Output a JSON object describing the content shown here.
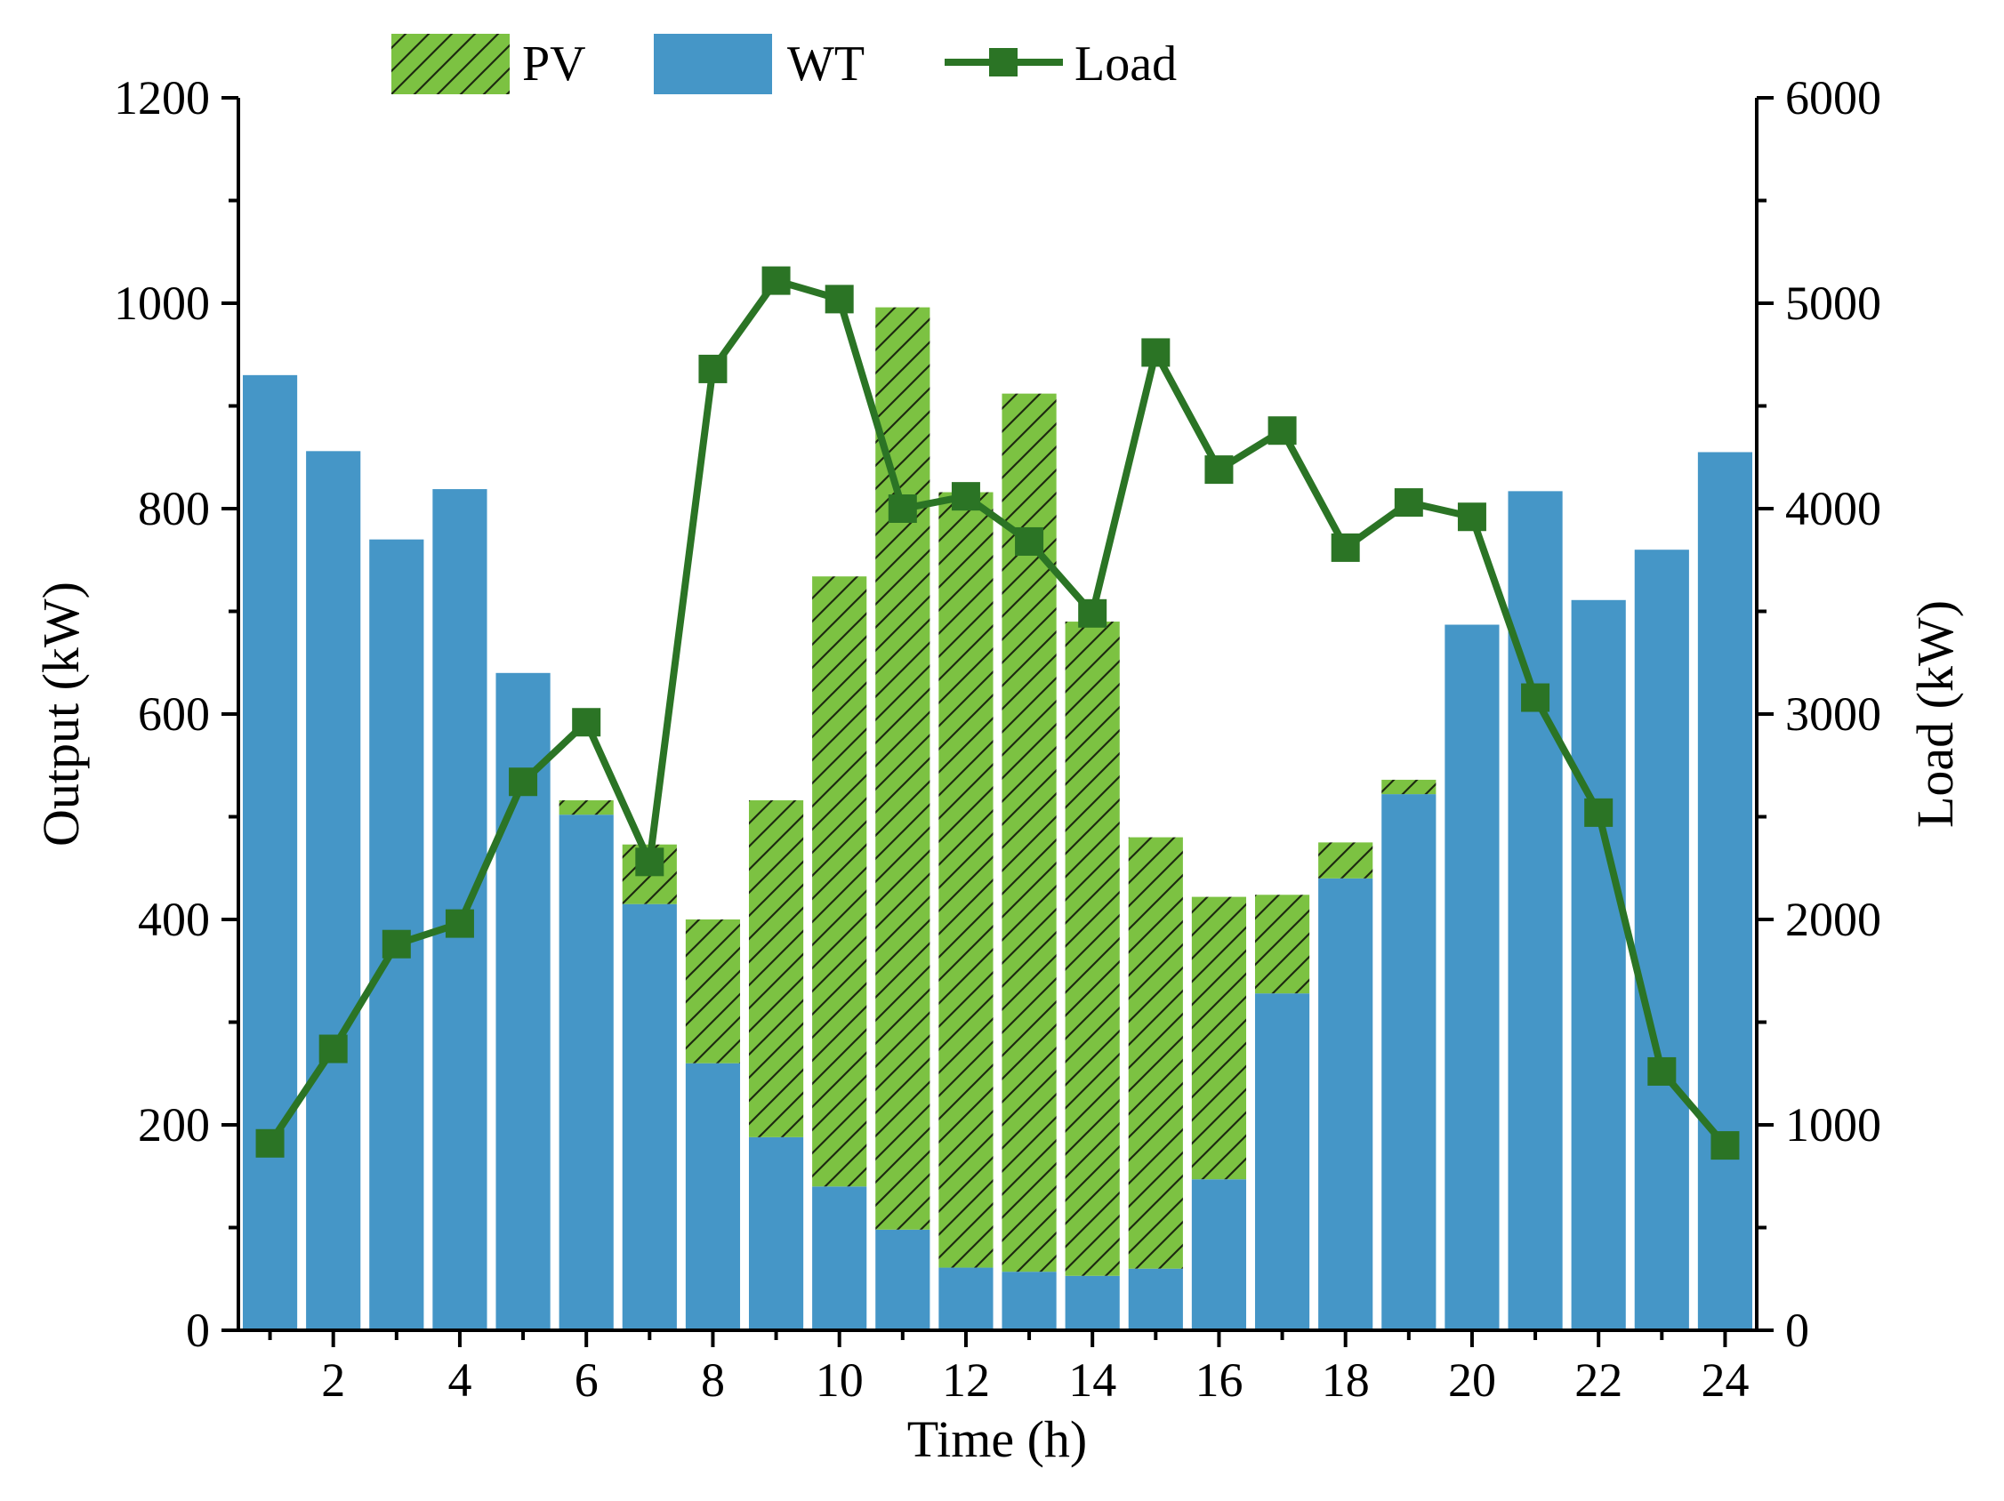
{
  "chart_data": {
    "type": "bar",
    "stacked": true,
    "xlabel": "Time (h)",
    "ylabel_left": "Output (kW)",
    "ylabel_right": "Load (kW)",
    "ylim_left": [
      0,
      1200
    ],
    "ylim_right": [
      0,
      6000
    ],
    "yticks_left": [
      0,
      200,
      400,
      600,
      800,
      1000,
      1200
    ],
    "yticks_right": [
      0,
      1000,
      2000,
      3000,
      4000,
      5000,
      6000
    ],
    "x_tick_labels": [
      2,
      4,
      6,
      8,
      10,
      12,
      14,
      16,
      18,
      20,
      22,
      24
    ],
    "x": [
      1,
      2,
      3,
      4,
      5,
      6,
      7,
      8,
      9,
      10,
      11,
      12,
      13,
      14,
      15,
      16,
      17,
      18,
      19,
      20,
      21,
      22,
      23,
      24
    ],
    "series": [
      {
        "name": "WT",
        "axis": "left",
        "kind": "bar",
        "color": "#4596c7",
        "values": [
          930,
          856,
          770,
          819,
          640,
          502,
          415,
          260,
          188,
          140,
          98,
          61,
          57,
          53,
          60,
          147,
          328,
          440,
          522,
          687,
          817,
          711,
          760,
          855
        ]
      },
      {
        "name": "PV",
        "axis": "left",
        "kind": "bar",
        "color": "#7cc242",
        "hatch": true,
        "values": [
          0,
          0,
          0,
          0,
          0,
          14,
          58,
          140,
          328,
          594,
          898,
          755,
          855,
          637,
          420,
          275,
          96,
          35,
          14,
          0,
          0,
          0,
          0,
          0
        ]
      },
      {
        "name": "Load",
        "axis": "right",
        "kind": "line",
        "color": "#2b7425",
        "marker": "square",
        "values": [
          910,
          1370,
          1880,
          1980,
          2670,
          2960,
          2280,
          4680,
          5110,
          5020,
          4000,
          4060,
          3840,
          3490,
          4760,
          4190,
          4380,
          3810,
          4030,
          3960,
          3080,
          2520,
          1260,
          900
        ]
      }
    ],
    "legend": [
      "PV",
      "WT",
      "Load"
    ],
    "legend_position": "top-center",
    "grid": false
  }
}
